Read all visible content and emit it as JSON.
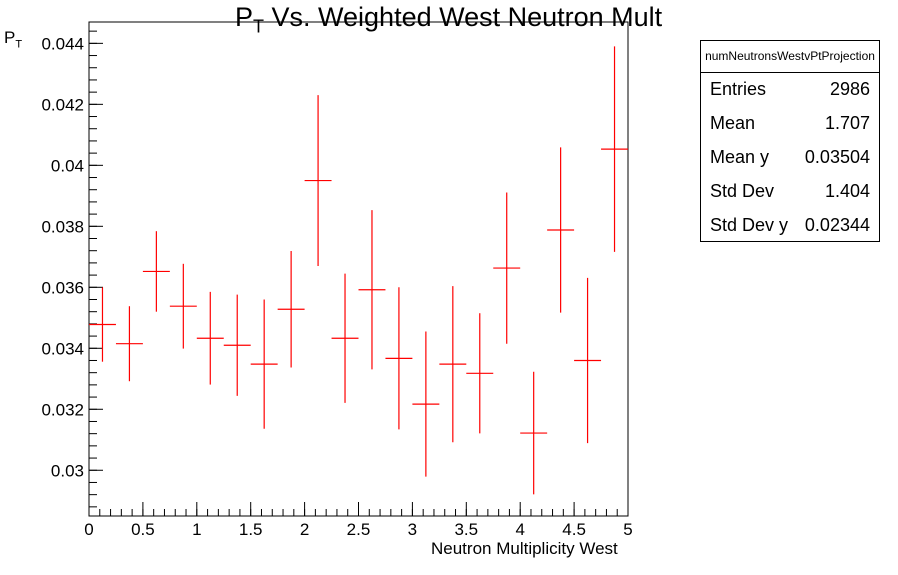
{
  "chart_data": {
    "type": "scatter",
    "title_main": "P",
    "title_sub": "T",
    "title_rest": " Vs. Weighted West Neutron Mult",
    "xlabel": "Neutron Multiplicity West",
    "ylabel_main": "P",
    "ylabel_sub": "T",
    "xlim": [
      0,
      5
    ],
    "ylim": [
      0.0285,
      0.0447
    ],
    "x_ticks": [
      "0",
      "0.5",
      "1",
      "1.5",
      "2",
      "2.5",
      "3",
      "3.5",
      "4",
      "4.5",
      "5"
    ],
    "y_ticks": [
      "0.03",
      "0.032",
      "0.034",
      "0.036",
      "0.038",
      "0.04",
      "0.042",
      "0.044"
    ],
    "grid": false,
    "bin_width": 0.25,
    "series": [
      {
        "color": "#ff0000",
        "points": [
          {
            "x": 0.125,
            "y": 0.03478,
            "err": 0.00122
          },
          {
            "x": 0.375,
            "y": 0.03415,
            "err": 0.00123
          },
          {
            "x": 0.625,
            "y": 0.03652,
            "err": 0.00132
          },
          {
            "x": 0.875,
            "y": 0.03538,
            "err": 0.00139
          },
          {
            "x": 1.125,
            "y": 0.03433,
            "err": 0.00152
          },
          {
            "x": 1.375,
            "y": 0.0341,
            "err": 0.00166
          },
          {
            "x": 1.625,
            "y": 0.03348,
            "err": 0.00212
          },
          {
            "x": 1.875,
            "y": 0.03528,
            "err": 0.00191
          },
          {
            "x": 2.125,
            "y": 0.0395,
            "err": 0.0028
          },
          {
            "x": 2.375,
            "y": 0.03433,
            "err": 0.00212
          },
          {
            "x": 2.625,
            "y": 0.03592,
            "err": 0.00261
          },
          {
            "x": 2.875,
            "y": 0.03367,
            "err": 0.00233
          },
          {
            "x": 3.125,
            "y": 0.03217,
            "err": 0.00238
          },
          {
            "x": 3.375,
            "y": 0.03348,
            "err": 0.00256
          },
          {
            "x": 3.625,
            "y": 0.03318,
            "err": 0.00197
          },
          {
            "x": 3.875,
            "y": 0.03663,
            "err": 0.00248
          },
          {
            "x": 4.125,
            "y": 0.03122,
            "err": 0.00201
          },
          {
            "x": 4.375,
            "y": 0.03788,
            "err": 0.00271
          },
          {
            "x": 4.625,
            "y": 0.0336,
            "err": 0.00271
          },
          {
            "x": 4.875,
            "y": 0.04053,
            "err": 0.00337
          }
        ]
      }
    ]
  },
  "stats_box": {
    "name": "numNeutronsWestvPtProjection",
    "rows": [
      {
        "label": "Entries",
        "value": "2986"
      },
      {
        "label": "Mean",
        "value": "1.707"
      },
      {
        "label": "Mean y",
        "value": "0.03504"
      },
      {
        "label": "Std Dev",
        "value": "1.404"
      },
      {
        "label": "Std Dev y",
        "value": "0.02344"
      }
    ]
  }
}
